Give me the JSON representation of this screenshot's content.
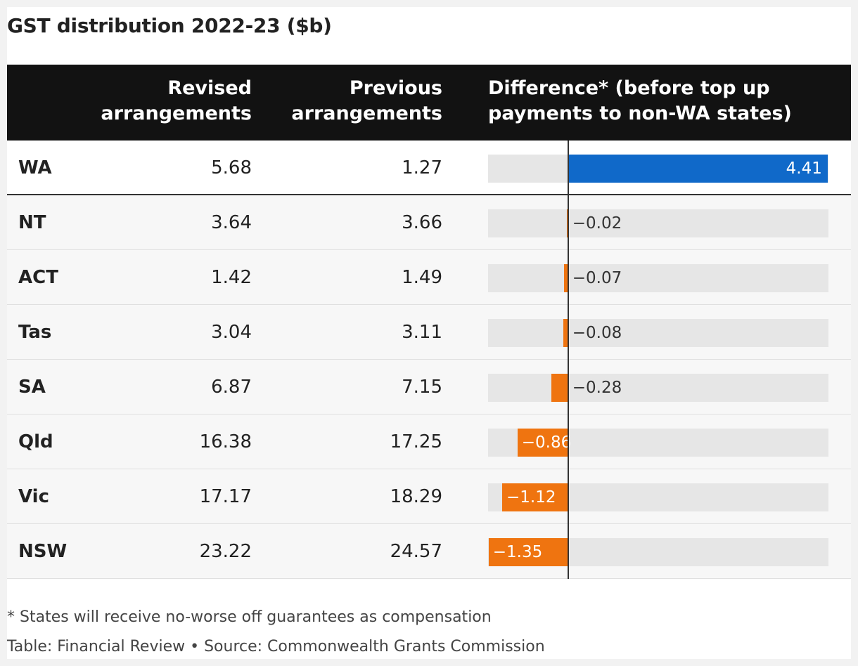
{
  "title": "GST distribution 2022-23 ($b)",
  "headers": {
    "revised": [
      "Revised",
      "arrangements"
    ],
    "previous": [
      "Previous",
      "arrangements"
    ],
    "difference": [
      "Difference* (before top up",
      "payments to non-WA states)"
    ]
  },
  "chart_data": {
    "type": "table",
    "title": "GST distribution 2022-23 ($b)",
    "columns": [
      "",
      "Revised arrangements",
      "Previous arrangements",
      "Difference* (before top up payments to non-WA states)"
    ],
    "rows": [
      {
        "state": "WA",
        "revised": "5.68",
        "previous": "1.27",
        "difference": 4.41,
        "difference_label": "4.41"
      },
      {
        "state": "NT",
        "revised": "3.64",
        "previous": "3.66",
        "difference": -0.02,
        "difference_label": "−0.02"
      },
      {
        "state": "ACT",
        "revised": "1.42",
        "previous": "1.49",
        "difference": -0.07,
        "difference_label": "−0.07"
      },
      {
        "state": "Tas",
        "revised": "3.04",
        "previous": "3.11",
        "difference": -0.08,
        "difference_label": "−0.08"
      },
      {
        "state": "SA",
        "revised": "6.87",
        "previous": "7.15",
        "difference": -0.28,
        "difference_label": "−0.28"
      },
      {
        "state": "Qld",
        "revised": "16.38",
        "previous": "17.25",
        "difference": -0.86,
        "difference_label": "−0.86"
      },
      {
        "state": "Vic",
        "revised": "17.17",
        "previous": "18.29",
        "difference": -1.12,
        "difference_label": "−1.12"
      },
      {
        "state": "NSW",
        "revised": "23.22",
        "previous": "24.57",
        "difference": -1.35,
        "difference_label": "−1.35"
      }
    ],
    "difference_range": [
      -1.35,
      4.41
    ]
  },
  "colors": {
    "positive": "#1069c9",
    "negative": "#ef7410",
    "track": "#e6e6e6",
    "header_bg": "#121212"
  },
  "footnote": "* States will receive no-worse off guarantees as compensation",
  "source": "Table: Financial Review • Source: Commonwealth Grants Commission"
}
